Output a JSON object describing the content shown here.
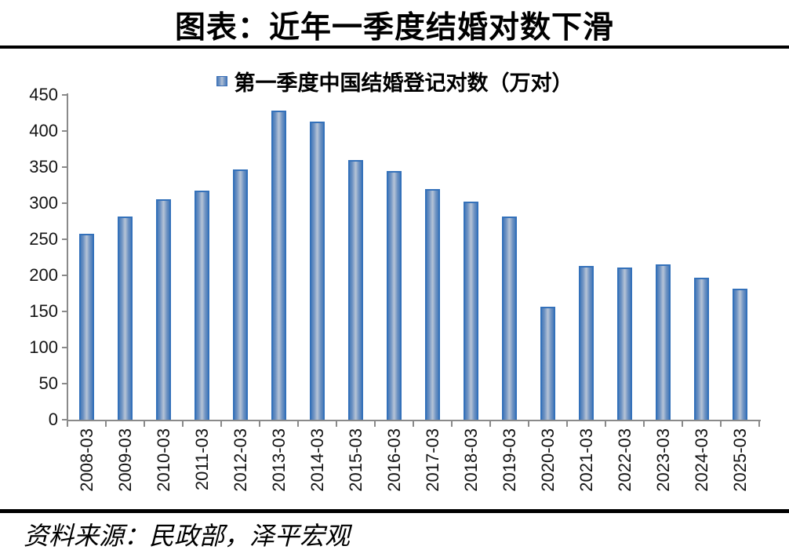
{
  "header": {
    "title": "图表：近年一季度结婚对数下滑"
  },
  "legend": {
    "label": "第一季度中国结婚登记对数（万对）"
  },
  "footer": {
    "source": "资料来源：民政部，泽平宏观"
  },
  "chart_data": {
    "type": "bar",
    "title": "图表：近年一季度结婚对数下滑",
    "legend": "第一季度中国结婚登记对数（万对）",
    "legend_position": "top-center",
    "categories": [
      "2008-03",
      "2009-03",
      "2010-03",
      "2011-03",
      "2012-03",
      "2013-03",
      "2014-03",
      "2015-03",
      "2016-03",
      "2017-03",
      "2018-03",
      "2019-03",
      "2020-03",
      "2021-03",
      "2022-03",
      "2023-03",
      "2024-03",
      "2025-03"
    ],
    "values": [
      258,
      282,
      305,
      317,
      347,
      428,
      413,
      360,
      345,
      320,
      302,
      281,
      156,
      213,
      211,
      215,
      197,
      181
    ],
    "xlabel": "",
    "ylabel": "",
    "ylim": [
      0,
      450
    ],
    "y_tick_step": 50,
    "y_ticks": [
      "0",
      "50",
      "100",
      "150",
      "200",
      "250",
      "300",
      "350",
      "400",
      "450"
    ],
    "grid": false,
    "colors": {
      "bar_edge": "#3471ba",
      "bar_fill_dark": "#4a7cb9",
      "bar_fill_light": "#b2c1d5",
      "axis": "#8a8a8a",
      "rule": "#000000",
      "text": "#141414"
    }
  }
}
